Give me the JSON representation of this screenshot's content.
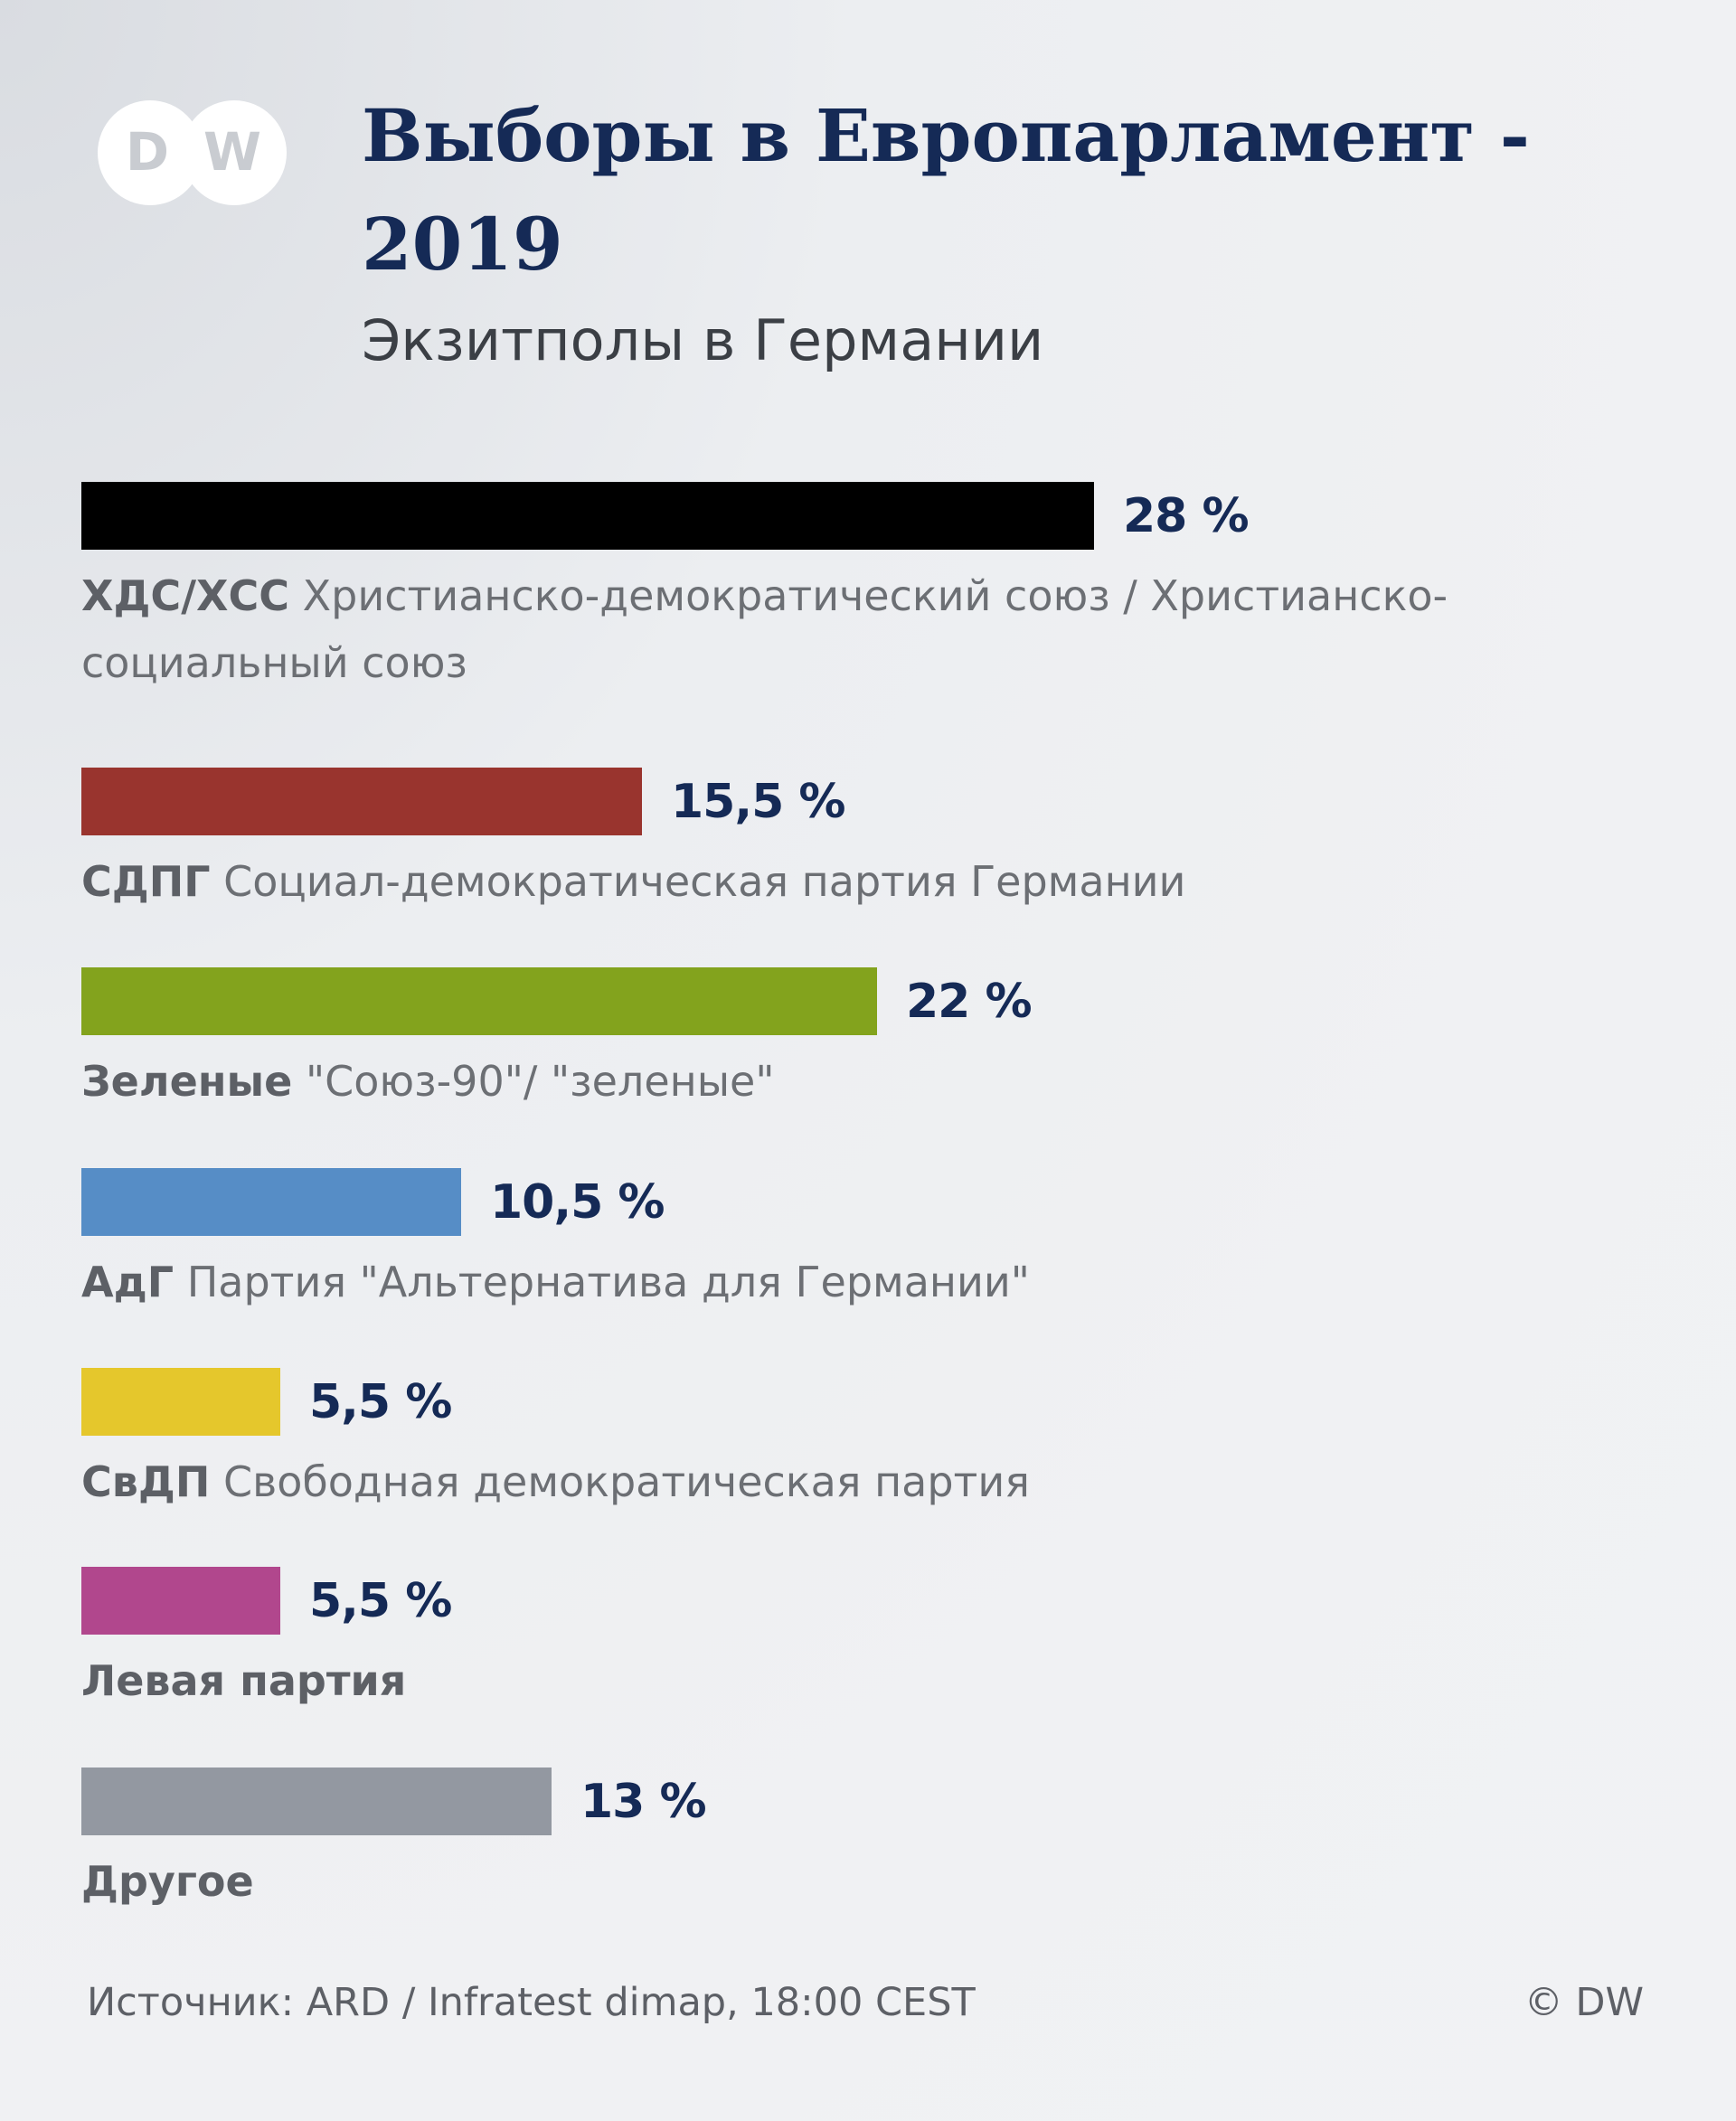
{
  "logo_text": "DW",
  "title": "Выборы в Европарламент - 2019",
  "subtitle": "Экзитполы в Германии",
  "chart_data": {
    "type": "bar",
    "orientation": "horizontal",
    "title": "Выборы в Европарламент - 2019",
    "subtitle": "Экзитполы в Германии",
    "unit": "%",
    "categories": [
      "ХДС/ХСС",
      "СДПГ",
      "Зеленые",
      "АдГ",
      "СвДП",
      "Левая партия",
      "Другое"
    ],
    "values": [
      28,
      15.5,
      22,
      10.5,
      5.5,
      5.5,
      13
    ],
    "items": [
      {
        "abbr": "ХДС/ХСС",
        "name": "Христианско-демократический союз / Христианско-социальный союз",
        "value": 28,
        "value_label": "28 %",
        "color": "#000000"
      },
      {
        "abbr": "СДПГ",
        "name": "Социал-демократическая партия Германии",
        "value": 15.5,
        "value_label": "15,5 %",
        "color": "#99342e"
      },
      {
        "abbr": "Зеленые",
        "name": "\"Союз-90\"/ \"зеленые\"",
        "value": 22,
        "value_label": "22 %",
        "color": "#83a31d"
      },
      {
        "abbr": "АдГ",
        "name": "Партия \"Альтернатива для Германии\"",
        "value": 10.5,
        "value_label": "10,5 %",
        "color": "#568dc6"
      },
      {
        "abbr": "СвДП",
        "name": "Свободная демократическая партия",
        "value": 5.5,
        "value_label": "5,5 %",
        "color": "#e5c72c"
      },
      {
        "abbr": "Левая партия",
        "name": "",
        "value": 5.5,
        "value_label": "5,5 %",
        "color": "#b1478d"
      },
      {
        "abbr": "Другое",
        "name": "",
        "value": 13,
        "value_label": "13 %",
        "color": "#9398a1"
      }
    ]
  },
  "footer": {
    "source": "Источник: ARD / Infratest dimap, 18:00 CEST",
    "copyright": "© DW"
  }
}
